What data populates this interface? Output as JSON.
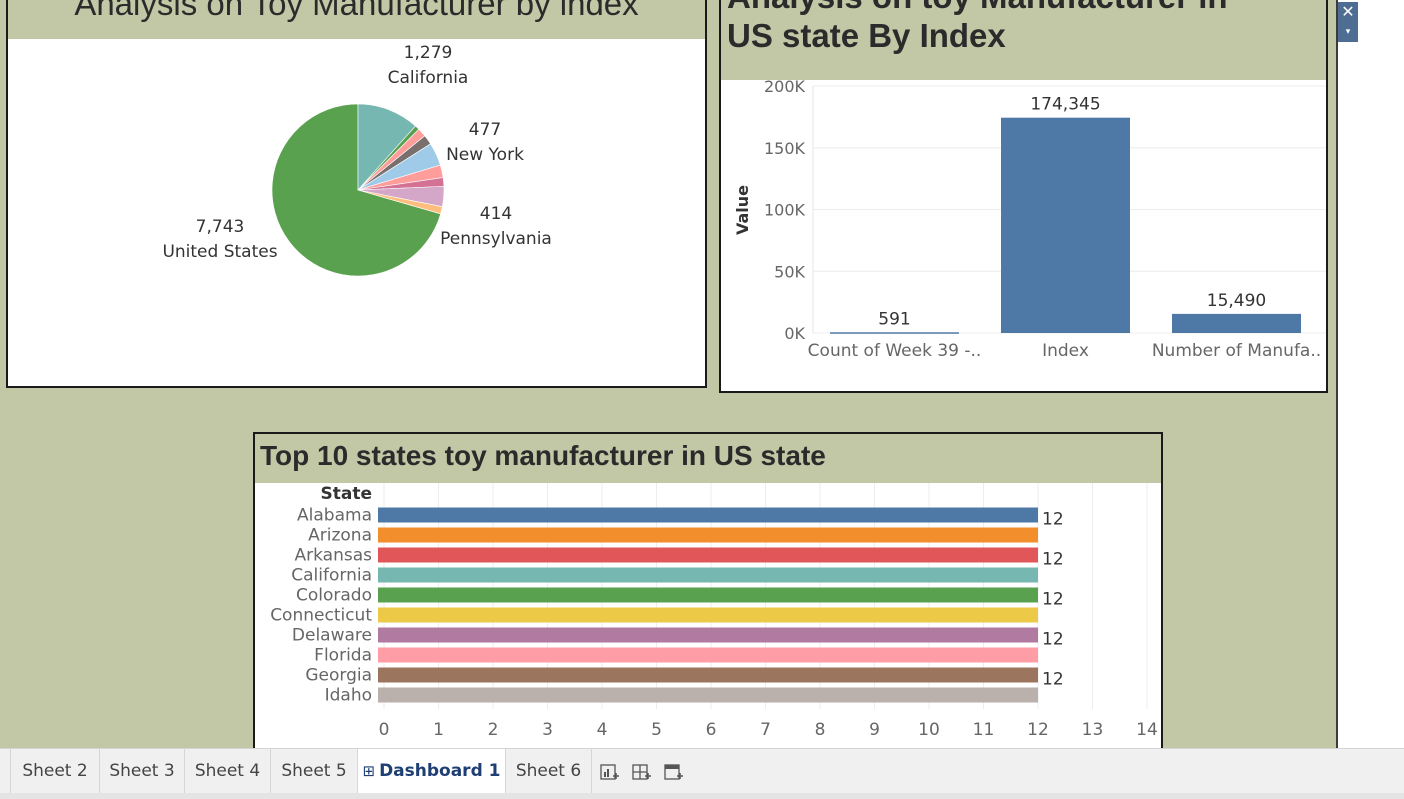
{
  "dashboard": {
    "pie_panel": {
      "title": "Analysis on Toy Manufacturer by index"
    },
    "bar_panel": {
      "title_line1": "Analysis on toy Manufacturer in",
      "title_line2": "US state By Index"
    },
    "hbar_panel": {
      "title": "Top 10 states toy manufacturer in US state"
    }
  },
  "colors": {
    "background": "#c2c7a6",
    "panel_header": "#c2c7a6",
    "bar_blue": "#4e79a7",
    "pie_green": "#59a14f"
  },
  "window_controls": {
    "close_glyph": "✕",
    "menu_glyph": "▾"
  },
  "tabs": [
    {
      "label": "Sheet 2"
    },
    {
      "label": "Sheet 3"
    },
    {
      "label": "Sheet 4"
    },
    {
      "label": "Sheet 5"
    },
    {
      "label": "Dashboard 1",
      "icon": "⊞",
      "active": true
    },
    {
      "label": "Sheet 6"
    }
  ],
  "tab_icons": [
    "new-worksheet-icon",
    "new-dashboard-icon",
    "new-story-icon"
  ],
  "chart_data": [
    {
      "type": "pie",
      "title": "Analysis on Toy Manufacturer by index",
      "slices": [
        {
          "label": "United States",
          "value": 7743,
          "display": "7,743",
          "color": "#59a14f"
        },
        {
          "label": "California",
          "value": 1279,
          "display": "1,279",
          "color": "#76b7b2"
        },
        {
          "label": "",
          "value": 95,
          "color": "#59a14f"
        },
        {
          "label": "",
          "value": 180,
          "color": "#ff9d9a"
        },
        {
          "label": "",
          "value": 200,
          "color": "#79706e"
        },
        {
          "label": "New York",
          "value": 477,
          "display": "477",
          "color": "#a0cbe8"
        },
        {
          "label": "",
          "value": 260,
          "color": "#ff9d9a"
        },
        {
          "label": "",
          "value": 180,
          "color": "#d37295"
        },
        {
          "label": "Pennsylvania",
          "value": 414,
          "display": "414",
          "color": "#d4a6c8"
        },
        {
          "label": "",
          "value": 150,
          "color": "#ffbe7d"
        }
      ]
    },
    {
      "type": "bar",
      "title": "Analysis on toy Manufacturer in US state By Index",
      "categories": [
        "Count of Week 39 -..",
        "Index",
        "Number of Manufa.."
      ],
      "values": [
        591,
        174345,
        15490
      ],
      "value_labels": [
        "591",
        "174,345",
        "15,490"
      ],
      "ylabel": "Value",
      "ylim": [
        0,
        200000
      ],
      "yticks": [
        0,
        50000,
        100000,
        150000,
        200000
      ],
      "ytick_labels": [
        "0K",
        "50K",
        "100K",
        "150K",
        "200K"
      ],
      "color": "#4e79a7",
      "grid": true
    },
    {
      "type": "bar",
      "orientation": "horizontal",
      "title": "Top 10 states toy manufacturer in US state",
      "ylabel": "State",
      "categories": [
        "Alabama",
        "Arizona",
        "Arkansas",
        "California",
        "Colorado",
        "Connecticut",
        "Delaware",
        "Florida",
        "Georgia",
        "Idaho"
      ],
      "values": [
        12,
        12,
        12,
        12,
        12,
        12,
        12,
        12,
        12,
        12
      ],
      "value_labels": [
        "12",
        "",
        "12",
        "",
        "12",
        "",
        "12",
        "",
        "12",
        ""
      ],
      "colors": [
        "#4e79a7",
        "#f28e2b",
        "#e15759",
        "#76b7b2",
        "#59a14f",
        "#edc948",
        "#b07aa1",
        "#ff9da7",
        "#9c755f",
        "#bab0ac"
      ],
      "xlim": [
        0,
        14
      ],
      "xticks": [
        0,
        1,
        2,
        3,
        4,
        5,
        6,
        7,
        8,
        9,
        10,
        11,
        12,
        13,
        14
      ],
      "grid": true
    }
  ]
}
